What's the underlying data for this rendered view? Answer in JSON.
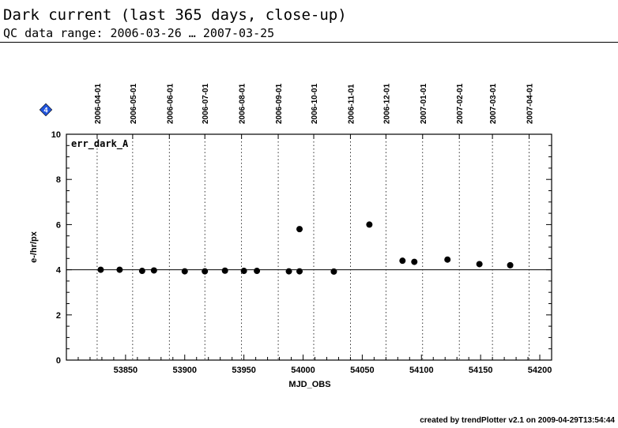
{
  "header": {
    "title": "Dark current (last 365 days, close-up)",
    "subtitle": "QC data range: 2006-03-26 … 2007-03-25"
  },
  "marker": {
    "label": "4",
    "color": "#2255dd"
  },
  "footer": {
    "text": "created by trendPlotter v2.1 on 2009-04-29T13:54:44"
  },
  "chart_data": {
    "type": "scatter",
    "panel_label": "err_dark_A",
    "xlabel": "MJD_OBS",
    "ylabel": "e-/hr/px",
    "xlim": [
      53800,
      54210
    ],
    "ylim": [
      0,
      10
    ],
    "x_ticks": [
      53850,
      53900,
      53950,
      54000,
      54050,
      54100,
      54150,
      54200
    ],
    "y_ticks": [
      0,
      2,
      4,
      6,
      8,
      10
    ],
    "reference_line": 4.0,
    "date_ticks": [
      {
        "label": "2006-04-01",
        "mjd": 53826
      },
      {
        "label": "2006-05-01",
        "mjd": 53856
      },
      {
        "label": "2006-06-01",
        "mjd": 53887
      },
      {
        "label": "2006-07-01",
        "mjd": 53917
      },
      {
        "label": "2006-08-01",
        "mjd": 53948
      },
      {
        "label": "2006-09-01",
        "mjd": 53979
      },
      {
        "label": "2006-10-01",
        "mjd": 54009
      },
      {
        "label": "2006-11-01",
        "mjd": 54040
      },
      {
        "label": "2006-12-01",
        "mjd": 54070
      },
      {
        "label": "2007-01-01",
        "mjd": 54101
      },
      {
        "label": "2007-02-01",
        "mjd": 54132
      },
      {
        "label": "2007-03-01",
        "mjd": 54160
      },
      {
        "label": "2007-04-01",
        "mjd": 54191
      }
    ],
    "points": [
      {
        "x": 53829,
        "y": 4.0
      },
      {
        "x": 53845,
        "y": 4.0
      },
      {
        "x": 53864,
        "y": 3.95
      },
      {
        "x": 53874,
        "y": 3.97
      },
      {
        "x": 53900,
        "y": 3.93
      },
      {
        "x": 53917,
        "y": 3.93
      },
      {
        "x": 53934,
        "y": 3.96
      },
      {
        "x": 53950,
        "y": 3.95
      },
      {
        "x": 53961,
        "y": 3.95
      },
      {
        "x": 53988,
        "y": 3.93
      },
      {
        "x": 53997,
        "y": 3.93
      },
      {
        "x": 53997,
        "y": 5.8
      },
      {
        "x": 54026,
        "y": 3.92
      },
      {
        "x": 54056,
        "y": 6.0
      },
      {
        "x": 54084,
        "y": 4.4
      },
      {
        "x": 54094,
        "y": 4.35
      },
      {
        "x": 54122,
        "y": 4.45
      },
      {
        "x": 54149,
        "y": 4.25
      },
      {
        "x": 54175,
        "y": 4.2
      }
    ]
  }
}
